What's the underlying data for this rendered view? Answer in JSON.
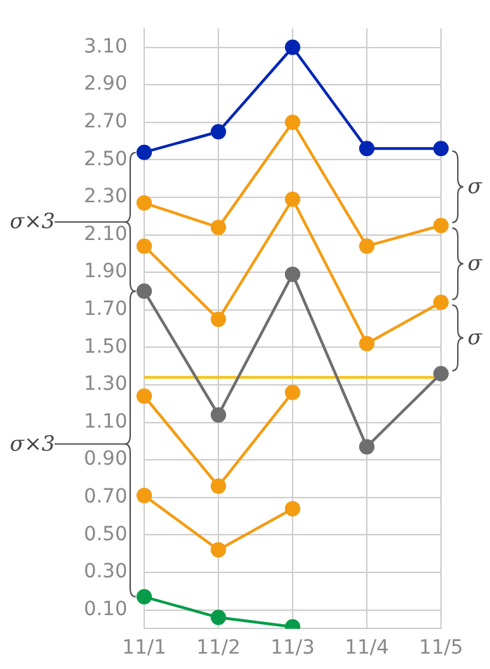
{
  "chart_data": {
    "type": "line",
    "categories": [
      "11/1",
      "11/2",
      "11/3",
      "11/4",
      "11/5"
    ],
    "series": [
      {
        "color": "#0026b3",
        "values": [
          2.54,
          2.65,
          3.1,
          2.56,
          2.56
        ]
      },
      {
        "color": "#f39c12",
        "values": [
          2.27,
          2.14,
          2.7,
          2.04,
          2.15
        ]
      },
      {
        "color": "#f39c12",
        "values": [
          2.04,
          1.65,
          2.29,
          1.52,
          1.74
        ]
      },
      {
        "color": "#6e6e6e",
        "values": [
          1.8,
          1.14,
          1.89,
          0.97,
          1.36
        ]
      },
      {
        "color": "#f39c12",
        "values": [
          1.24,
          0.76,
          1.26,
          null,
          null
        ]
      },
      {
        "color": "#f39c12",
        "values": [
          0.71,
          0.42,
          0.64,
          null,
          null
        ]
      },
      {
        "color": "#079c4a",
        "values": [
          0.17,
          0.06,
          0.01,
          null,
          null
        ]
      }
    ],
    "ylim": [
      0,
      3.2
    ],
    "yticks": [
      {
        "value": 0.1,
        "label": "0.10"
      },
      {
        "value": 0.3,
        "label": "0.30"
      },
      {
        "value": 0.5,
        "label": "0.50"
      },
      {
        "value": 0.7,
        "label": "0.70"
      },
      {
        "value": 0.9,
        "label": "0.90"
      },
      {
        "value": 1.1,
        "label": "1.10"
      },
      {
        "value": 1.3,
        "label": "1.30"
      },
      {
        "value": 1.5,
        "label": "1.50"
      },
      {
        "value": 1.7,
        "label": "1.70"
      },
      {
        "value": 1.9,
        "label": "1.90"
      },
      {
        "value": 2.1,
        "label": "2.10"
      },
      {
        "value": 2.3,
        "label": "2.30"
      },
      {
        "value": 2.5,
        "label": "2.50"
      },
      {
        "value": 2.7,
        "label": "2.70"
      },
      {
        "value": 2.9,
        "label": "2.90"
      },
      {
        "value": 3.1,
        "label": "3.10"
      }
    ],
    "ref_lines": [
      {
        "axis": "y",
        "value": 1.34,
        "color": "#f5c518"
      }
    ],
    "annotations": [
      "σ×3",
      "σ×3",
      "σ",
      "σ",
      "σ"
    ],
    "grid": true,
    "legend": false,
    "marker": "circle",
    "line_style": "solid"
  }
}
